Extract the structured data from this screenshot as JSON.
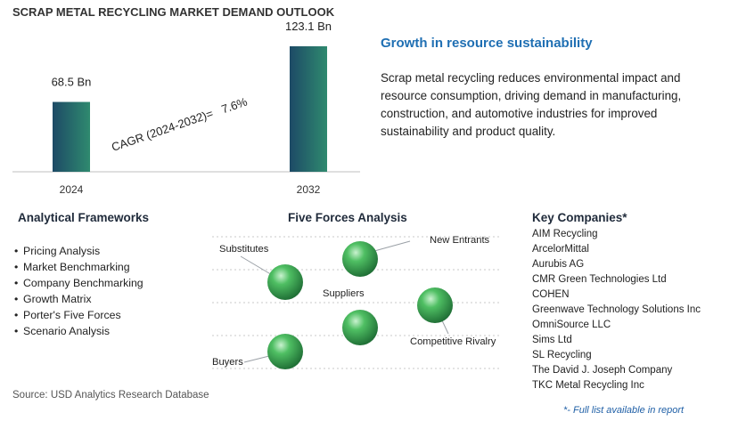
{
  "header": {
    "title": "SCRAP METAL RECYCLING MARKET DEMAND OUTLOOK"
  },
  "chart_data": {
    "type": "bar",
    "categories": [
      "2024",
      "2032"
    ],
    "values": [
      68.5,
      123.1
    ],
    "value_labels": [
      "68.5 Bn",
      "123.1 Bn"
    ],
    "annotation": "CAGR (2024-2032)=   7.6%",
    "colors": {
      "bar_dark": "#1d4a66",
      "bar_light": "#2f8a6f"
    }
  },
  "growth": {
    "title": "Growth in resource sustainability",
    "text": "Scrap metal recycling reduces environmental impact and resource consumption, driving demand in manufacturing, construction, and automotive industries for improved sustainability and product quality."
  },
  "frameworks": {
    "title": "Analytical Frameworks",
    "items": [
      "Pricing Analysis",
      "Market Benchmarking",
      "Company Benchmarking",
      "Growth Matrix",
      "Porter's Five Forces",
      "Scenario Analysis"
    ]
  },
  "five_forces": {
    "title": "Five Forces Analysis",
    "labels": {
      "substitutes": "Substitutes",
      "new_entrants": "New Entrants",
      "suppliers": "Suppliers",
      "competitive_rivalry": "Competitive Rivalry",
      "buyers": "Buyers"
    },
    "colors": {
      "sphere": "#2e9a4c",
      "line": "#9aa0a6"
    }
  },
  "companies": {
    "title": "Key Companies*",
    "items": [
      "AIM Recycling",
      "ArcelorMittal",
      "Aurubis AG",
      "CMR Green Technologies Ltd",
      "COHEN",
      "Greenwave Technology Solutions Inc",
      "OmniSource LLC",
      "Sims Ltd",
      "SL Recycling",
      "The David J. Joseph Company",
      "TKC Metal Recycling Inc"
    ],
    "note": "*- Full list available in report"
  },
  "source": "Source: USD Analytics Research Database"
}
